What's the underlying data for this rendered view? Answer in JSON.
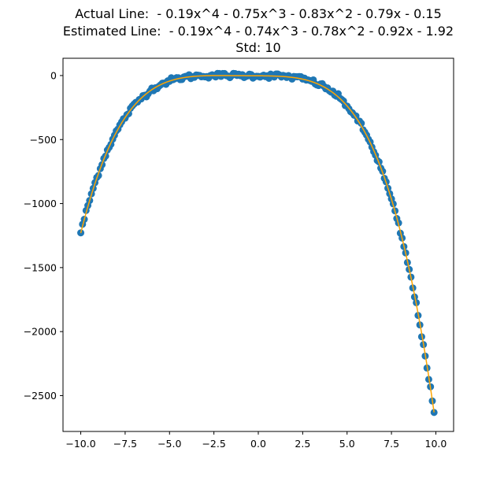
{
  "chart_data": {
    "type": "scatter",
    "title_lines": [
      "Actual Line:  - 0.19x^4 - 0.75x^3 - 0.83x^2 - 0.79x - 0.15",
      "Estimated Line:  - 0.19x^4 - 0.74x^3 - 0.78x^2 - 0.92x - 1.92",
      "Std: 10"
    ],
    "xlabel": "",
    "ylabel": "",
    "xlim": [
      -11.0,
      11.0
    ],
    "ylim": [
      -2780,
      135
    ],
    "x_ticks": [
      -10.0,
      -7.5,
      -5.0,
      -2.5,
      0.0,
      2.5,
      5.0,
      7.5,
      10.0
    ],
    "x_tick_labels": [
      "−10.0",
      "−7.5",
      "−5.0",
      "−2.5",
      "0.0",
      "2.5",
      "5.0",
      "7.5",
      "10.0"
    ],
    "y_ticks": [
      0,
      -500,
      -1000,
      -1500,
      -2000,
      -2500
    ],
    "y_tick_labels": [
      "0",
      "−500",
      "−1000",
      "−1500",
      "−2000",
      "−2500"
    ],
    "grid": false,
    "scatter_series": {
      "color": "#1f77b4",
      "x_range": [
        -10.0,
        9.9
      ],
      "n_points": 200,
      "coefficients": [
        -0.19,
        -0.75,
        -0.83,
        -0.79,
        -0.15
      ],
      "noise_std": 10
    },
    "fit_series": {
      "color": "#ffa500",
      "x_range": [
        -10.0,
        9.9
      ],
      "coefficients": [
        -0.19,
        -0.74,
        -0.78,
        -0.92,
        -1.92
      ]
    }
  }
}
